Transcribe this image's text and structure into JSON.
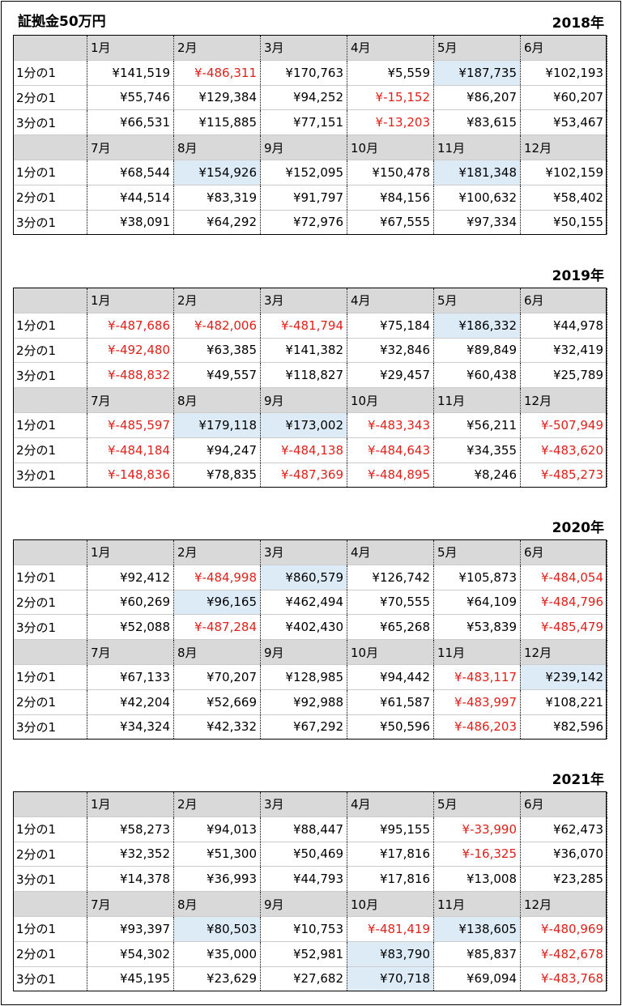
{
  "title": "証拠金50万円",
  "row_labels": [
    "1分の1",
    "2分の1",
    "3分の1"
  ],
  "years": [
    {
      "label": "2018年",
      "halves": [
        {
          "months": [
            "1月",
            "2月",
            "3月",
            "4月",
            "5月",
            "6月"
          ],
          "rows": [
            [
              {
                "v": "¥141,519"
              },
              {
                "v": "¥-486,311",
                "neg": true
              },
              {
                "v": "¥170,763"
              },
              {
                "v": "¥5,559"
              },
              {
                "v": "¥187,735",
                "hl": true
              },
              {
                "v": "¥102,193"
              }
            ],
            [
              {
                "v": "¥55,746"
              },
              {
                "v": "¥129,384"
              },
              {
                "v": "¥94,252"
              },
              {
                "v": "¥-15,152",
                "neg": true
              },
              {
                "v": "¥86,207"
              },
              {
                "v": "¥60,207"
              }
            ],
            [
              {
                "v": "¥66,531"
              },
              {
                "v": "¥115,885"
              },
              {
                "v": "¥77,151"
              },
              {
                "v": "¥-13,203",
                "neg": true
              },
              {
                "v": "¥83,615"
              },
              {
                "v": "¥53,467"
              }
            ]
          ]
        },
        {
          "months": [
            "7月",
            "8月",
            "9月",
            "10月",
            "11月",
            "12月"
          ],
          "rows": [
            [
              {
                "v": "¥68,544"
              },
              {
                "v": "¥154,926",
                "hl": true
              },
              {
                "v": "¥152,095"
              },
              {
                "v": "¥150,478"
              },
              {
                "v": "¥181,348",
                "hl": true
              },
              {
                "v": "¥102,159"
              }
            ],
            [
              {
                "v": "¥44,514"
              },
              {
                "v": "¥83,319"
              },
              {
                "v": "¥91,797"
              },
              {
                "v": "¥84,156"
              },
              {
                "v": "¥100,632"
              },
              {
                "v": "¥58,402"
              }
            ],
            [
              {
                "v": "¥38,091"
              },
              {
                "v": "¥64,292"
              },
              {
                "v": "¥72,976"
              },
              {
                "v": "¥67,555"
              },
              {
                "v": "¥97,334"
              },
              {
                "v": "¥50,155"
              }
            ]
          ]
        }
      ]
    },
    {
      "label": "2019年",
      "halves": [
        {
          "months": [
            "1月",
            "2月",
            "3月",
            "4月",
            "5月",
            "6月"
          ],
          "rows": [
            [
              {
                "v": "¥-487,686",
                "neg": true
              },
              {
                "v": "¥-482,006",
                "neg": true
              },
              {
                "v": "¥-481,794",
                "neg": true
              },
              {
                "v": "¥75,184"
              },
              {
                "v": "¥186,332",
                "hl": true
              },
              {
                "v": "¥44,978"
              }
            ],
            [
              {
                "v": "¥-492,480",
                "neg": true
              },
              {
                "v": "¥63,385"
              },
              {
                "v": "¥141,382"
              },
              {
                "v": "¥32,846"
              },
              {
                "v": "¥89,849"
              },
              {
                "v": "¥32,419"
              }
            ],
            [
              {
                "v": "¥-488,832",
                "neg": true
              },
              {
                "v": "¥49,557"
              },
              {
                "v": "¥118,827"
              },
              {
                "v": "¥29,457"
              },
              {
                "v": "¥60,438"
              },
              {
                "v": "¥25,789"
              }
            ]
          ]
        },
        {
          "months": [
            "7月",
            "8月",
            "9月",
            "10月",
            "11月",
            "12月"
          ],
          "rows": [
            [
              {
                "v": "¥-485,597",
                "neg": true
              },
              {
                "v": "¥179,118",
                "hl": true
              },
              {
                "v": "¥173,002",
                "hl": true
              },
              {
                "v": "¥-483,343",
                "neg": true
              },
              {
                "v": "¥56,211"
              },
              {
                "v": "¥-507,949",
                "neg": true
              }
            ],
            [
              {
                "v": "¥-484,184",
                "neg": true
              },
              {
                "v": "¥94,247"
              },
              {
                "v": "¥-484,138",
                "neg": true
              },
              {
                "v": "¥-484,643",
                "neg": true
              },
              {
                "v": "¥34,355"
              },
              {
                "v": "¥-483,620",
                "neg": true
              }
            ],
            [
              {
                "v": "¥-148,836",
                "neg": true
              },
              {
                "v": "¥78,835"
              },
              {
                "v": "¥-487,369",
                "neg": true
              },
              {
                "v": "¥-484,895",
                "neg": true
              },
              {
                "v": "¥8,246"
              },
              {
                "v": "¥-485,273",
                "neg": true
              }
            ]
          ]
        }
      ]
    },
    {
      "label": "2020年",
      "halves": [
        {
          "months": [
            "1月",
            "2月",
            "3月",
            "4月",
            "5月",
            "6月"
          ],
          "rows": [
            [
              {
                "v": "¥92,412"
              },
              {
                "v": "¥-484,998",
                "neg": true
              },
              {
                "v": "¥860,579",
                "hl": true
              },
              {
                "v": "¥126,742"
              },
              {
                "v": "¥105,873"
              },
              {
                "v": "¥-484,054",
                "neg": true
              }
            ],
            [
              {
                "v": "¥60,269"
              },
              {
                "v": "¥96,165",
                "hl": true
              },
              {
                "v": "¥462,494"
              },
              {
                "v": "¥70,555"
              },
              {
                "v": "¥64,109"
              },
              {
                "v": "¥-484,796",
                "neg": true
              }
            ],
            [
              {
                "v": "¥52,088"
              },
              {
                "v": "¥-487,284",
                "neg": true
              },
              {
                "v": "¥402,430"
              },
              {
                "v": "¥65,268"
              },
              {
                "v": "¥53,839"
              },
              {
                "v": "¥-485,479",
                "neg": true
              }
            ]
          ]
        },
        {
          "months": [
            "7月",
            "8月",
            "9月",
            "10月",
            "11月",
            "12月"
          ],
          "rows": [
            [
              {
                "v": "¥67,133"
              },
              {
                "v": "¥70,207"
              },
              {
                "v": "¥128,985"
              },
              {
                "v": "¥94,442"
              },
              {
                "v": "¥-483,117",
                "neg": true
              },
              {
                "v": "¥239,142",
                "hl": true
              }
            ],
            [
              {
                "v": "¥42,204"
              },
              {
                "v": "¥52,669"
              },
              {
                "v": "¥92,988"
              },
              {
                "v": "¥61,587"
              },
              {
                "v": "¥-483,997",
                "neg": true
              },
              {
                "v": "¥108,221"
              }
            ],
            [
              {
                "v": "¥34,324"
              },
              {
                "v": "¥42,332"
              },
              {
                "v": "¥67,292"
              },
              {
                "v": "¥50,596"
              },
              {
                "v": "¥-486,203",
                "neg": true
              },
              {
                "v": "¥82,596"
              }
            ]
          ]
        }
      ]
    },
    {
      "label": "2021年",
      "halves": [
        {
          "months": [
            "1月",
            "2月",
            "3月",
            "4月",
            "5月",
            "6月"
          ],
          "rows": [
            [
              {
                "v": "¥58,273"
              },
              {
                "v": "¥94,013"
              },
              {
                "v": "¥88,447"
              },
              {
                "v": "¥95,155"
              },
              {
                "v": "¥-33,990",
                "neg": true
              },
              {
                "v": "¥62,473"
              }
            ],
            [
              {
                "v": "¥32,352"
              },
              {
                "v": "¥51,300"
              },
              {
                "v": "¥50,469"
              },
              {
                "v": "¥17,816"
              },
              {
                "v": "¥-16,325",
                "neg": true
              },
              {
                "v": "¥36,070"
              }
            ],
            [
              {
                "v": "¥14,378"
              },
              {
                "v": "¥36,993"
              },
              {
                "v": "¥44,793"
              },
              {
                "v": "¥17,816"
              },
              {
                "v": "¥13,008"
              },
              {
                "v": "¥23,285"
              }
            ]
          ]
        },
        {
          "months": [
            "7月",
            "8月",
            "9月",
            "10月",
            "11月",
            "12月"
          ],
          "rows": [
            [
              {
                "v": "¥93,397"
              },
              {
                "v": "¥80,503",
                "hl": true
              },
              {
                "v": "¥10,753"
              },
              {
                "v": "¥-481,419",
                "neg": true
              },
              {
                "v": "¥138,605",
                "hl": true
              },
              {
                "v": "¥-480,969",
                "neg": true
              }
            ],
            [
              {
                "v": "¥54,302"
              },
              {
                "v": "¥35,000"
              },
              {
                "v": "¥52,981"
              },
              {
                "v": "¥83,790",
                "hl": true
              },
              {
                "v": "¥85,837"
              },
              {
                "v": "¥-482,678",
                "neg": true
              }
            ],
            [
              {
                "v": "¥45,195"
              },
              {
                "v": "¥23,629"
              },
              {
                "v": "¥27,682"
              },
              {
                "v": "¥70,718",
                "hl": true
              },
              {
                "v": "¥69,094"
              },
              {
                "v": "¥-483,768",
                "neg": true
              }
            ]
          ]
        }
      ]
    }
  ]
}
